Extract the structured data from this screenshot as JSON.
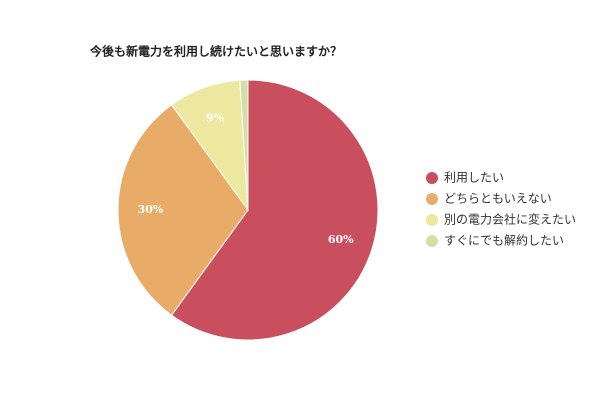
{
  "chart_data": {
    "type": "pie",
    "title": "今後も新電力を利用し続けたいと思いますか？",
    "categories": [
      "利用したい",
      "どちらともいえない",
      "別の電力会社に変えたい",
      "すぐにでも解約したい"
    ],
    "values": [
      60,
      30,
      9,
      1
    ],
    "value_labels": [
      "60%",
      "30%",
      "9%",
      null
    ],
    "colors": [
      "#c94f5e",
      "#e8ac68",
      "#ede8a0",
      "#d2e0a8"
    ]
  }
}
